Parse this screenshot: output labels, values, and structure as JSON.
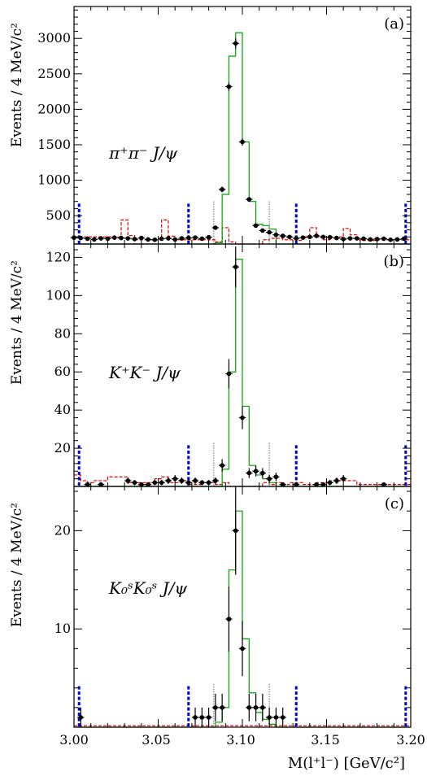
{
  "xlabel": "M(l⁺l⁻)  [GeV/c²]",
  "xticks": [
    "3.00",
    "3.05",
    "3.10",
    "3.15",
    "3.20"
  ],
  "colors": {
    "signal_mc": "#00a000",
    "background": "#dd0000",
    "data": "#000000",
    "signal_window": "#888888",
    "sideband": "#0000cc"
  },
  "chart_data": [
    {
      "type": "histogram",
      "panel_label": "(a)",
      "channel": "π⁺π⁻ J/ψ",
      "ylabel": "Events / 4 MeV/c²",
      "xlim": [
        3.0,
        3.2
      ],
      "ylim": [
        100,
        3450
      ],
      "yticks": [
        "500",
        "1000",
        "1500",
        "2000",
        "2500",
        "3000"
      ],
      "bin_width": 0.004,
      "data_points": {
        "x": [
          3.0,
          3.004,
          3.008,
          3.012,
          3.016,
          3.02,
          3.024,
          3.028,
          3.032,
          3.036,
          3.04,
          3.044,
          3.048,
          3.052,
          3.056,
          3.06,
          3.064,
          3.068,
          3.072,
          3.076,
          3.08,
          3.084,
          3.088,
          3.092,
          3.096,
          3.1,
          3.104,
          3.108,
          3.112,
          3.116,
          3.12,
          3.124,
          3.128,
          3.132,
          3.136,
          3.14,
          3.144,
          3.148,
          3.152,
          3.156,
          3.16,
          3.164,
          3.168,
          3.172,
          3.176,
          3.18,
          3.184,
          3.188,
          3.192,
          3.196
        ],
        "y": [
          190,
          185,
          175,
          165,
          180,
          175,
          190,
          185,
          180,
          170,
          185,
          165,
          160,
          175,
          180,
          165,
          180,
          185,
          190,
          175,
          195,
          330,
          870,
          2320,
          2930,
          1540,
          730,
          360,
          290,
          265,
          230,
          215,
          200,
          180,
          190,
          200,
          215,
          200,
          195,
          185,
          170,
          180,
          180,
          175,
          165,
          170,
          175,
          160,
          165,
          175
        ],
        "yerr": [
          20,
          20,
          20,
          20,
          20,
          20,
          20,
          20,
          20,
          20,
          20,
          20,
          20,
          20,
          20,
          20,
          20,
          20,
          20,
          20,
          20,
          25,
          40,
          60,
          70,
          50,
          35,
          25,
          25,
          22,
          22,
          22,
          20,
          20,
          20,
          20,
          20,
          20,
          20,
          20,
          20,
          20,
          20,
          20,
          20,
          20,
          20,
          20,
          20,
          20
        ]
      },
      "signal_mc": {
        "edges": [
          3.0,
          3.084,
          3.088,
          3.092,
          3.096,
          3.1,
          3.104,
          3.108,
          3.112,
          3.116,
          3.12,
          3.2
        ],
        "values": [
          0,
          120,
          800,
          2750,
          3080,
          1540,
          700,
          380,
          360,
          310,
          0
        ]
      },
      "background": {
        "edges": [
          3.0,
          3.028,
          3.032,
          3.036,
          3.052,
          3.056,
          3.06,
          3.084,
          3.088,
          3.092,
          3.096,
          3.112,
          3.116,
          3.124,
          3.132,
          3.136,
          3.14,
          3.144,
          3.148,
          3.152,
          3.16,
          3.164,
          3.168,
          3.172,
          3.18,
          3.2
        ],
        "values": [
          200,
          440,
          220,
          160,
          440,
          210,
          160,
          130,
          330,
          130,
          40,
          160,
          180,
          160,
          150,
          200,
          330,
          200,
          160,
          200,
          320,
          230,
          160,
          150,
          160
        ]
      },
      "signal_window_lines": [
        3.083,
        3.116
      ],
      "sideband_lines": [
        3.003,
        3.068,
        3.132,
        3.197
      ]
    },
    {
      "type": "histogram",
      "panel_label": "(b)",
      "channel": "K⁺K⁻ J/ψ",
      "ylabel": "Events / 4 MeV/c²",
      "xlim": [
        3.0,
        3.2
      ],
      "ylim": [
        0,
        127
      ],
      "yticks": [
        "20",
        "40",
        "60",
        "80",
        "100",
        "120"
      ],
      "bin_width": 0.004,
      "data_points": {
        "x": [
          3.008,
          3.016,
          3.032,
          3.036,
          3.04,
          3.044,
          3.048,
          3.052,
          3.056,
          3.06,
          3.064,
          3.068,
          3.072,
          3.076,
          3.08,
          3.084,
          3.088,
          3.092,
          3.096,
          3.1,
          3.104,
          3.108,
          3.112,
          3.116,
          3.12,
          3.124,
          3.132,
          3.144,
          3.148,
          3.152,
          3.156,
          3.16,
          3.184
        ],
        "y": [
          1,
          1,
          3,
          2,
          1,
          1,
          2,
          2,
          3,
          4,
          3,
          2,
          3,
          2,
          2,
          3,
          11,
          59,
          115,
          36,
          7,
          8,
          7,
          4,
          5,
          1,
          1,
          1,
          1,
          2,
          3,
          4,
          1
        ],
        "yerr": [
          1,
          1,
          1.7,
          1.4,
          1,
          1,
          1.4,
          1.4,
          1.7,
          2,
          1.7,
          1.4,
          1.7,
          1.4,
          1.4,
          1.7,
          3.3,
          7.7,
          10.7,
          6,
          2.6,
          2.8,
          2.6,
          2,
          2.2,
          1,
          1,
          1,
          1,
          1.4,
          1.7,
          2,
          1
        ]
      },
      "signal_mc": {
        "edges": [
          3.0,
          3.088,
          3.092,
          3.096,
          3.1,
          3.104,
          3.108,
          3.112,
          3.116,
          3.12,
          3.2
        ],
        "values": [
          0,
          9,
          60,
          119,
          42,
          11,
          6,
          4,
          2,
          0
        ]
      },
      "background": {
        "edges": [
          3.0,
          3.004,
          3.008,
          3.012,
          3.02,
          3.032,
          3.048,
          3.052,
          3.056,
          3.064,
          3.068,
          3.076,
          3.084,
          3.088,
          3.092,
          3.112,
          3.116,
          3.12,
          3.124,
          3.128,
          3.136,
          3.144,
          3.152,
          3.168,
          3.184,
          3.2
        ],
        "values": [
          6,
          3,
          2,
          3,
          5,
          2,
          4,
          5,
          2,
          3,
          1,
          2,
          1,
          2,
          0,
          2,
          1,
          2,
          1,
          2,
          1,
          2,
          3,
          1,
          1
        ]
      },
      "signal_window_lines": [
        3.083,
        3.116
      ],
      "sideband_lines": [
        3.003,
        3.068,
        3.132,
        3.197
      ]
    },
    {
      "type": "histogram",
      "panel_label": "(c)",
      "channel": "K₀ˢK₀ˢ J/ψ",
      "channel_sub": "S",
      "channel_sup": "0",
      "ylabel": "Events / 4 MeV/c²",
      "xlim": [
        3.0,
        3.2
      ],
      "ylim": [
        0,
        24.5
      ],
      "yticks": [
        "10",
        "20"
      ],
      "bin_width": 0.004,
      "data_points": {
        "x": [
          3.004,
          3.072,
          3.076,
          3.08,
          3.084,
          3.088,
          3.092,
          3.096,
          3.1,
          3.104,
          3.108,
          3.112,
          3.116,
          3.12,
          3.124
        ],
        "y": [
          1,
          1,
          1,
          1,
          2,
          2,
          11,
          20,
          8,
          2,
          2,
          2,
          1,
          1,
          1
        ],
        "yerr": [
          1,
          1,
          1,
          1,
          1.4,
          1.4,
          3.3,
          4.5,
          2.8,
          1.4,
          1.4,
          1.4,
          1,
          1,
          1
        ]
      },
      "signal_mc": {
        "edges": [
          3.0,
          3.084,
          3.088,
          3.092,
          3.096,
          3.1,
          3.104,
          3.108,
          3.112,
          3.116,
          3.12,
          3.2
        ],
        "values": [
          0,
          0.5,
          2,
          16,
          22,
          9,
          3.5,
          1.5,
          0.8,
          0.3,
          0
        ]
      },
      "background": {
        "edges": [
          3.0,
          3.2
        ],
        "values": [
          0.15
        ]
      },
      "signal_window_lines": [
        3.083,
        3.116
      ],
      "sideband_lines": [
        3.003,
        3.068,
        3.132,
        3.197
      ]
    }
  ]
}
